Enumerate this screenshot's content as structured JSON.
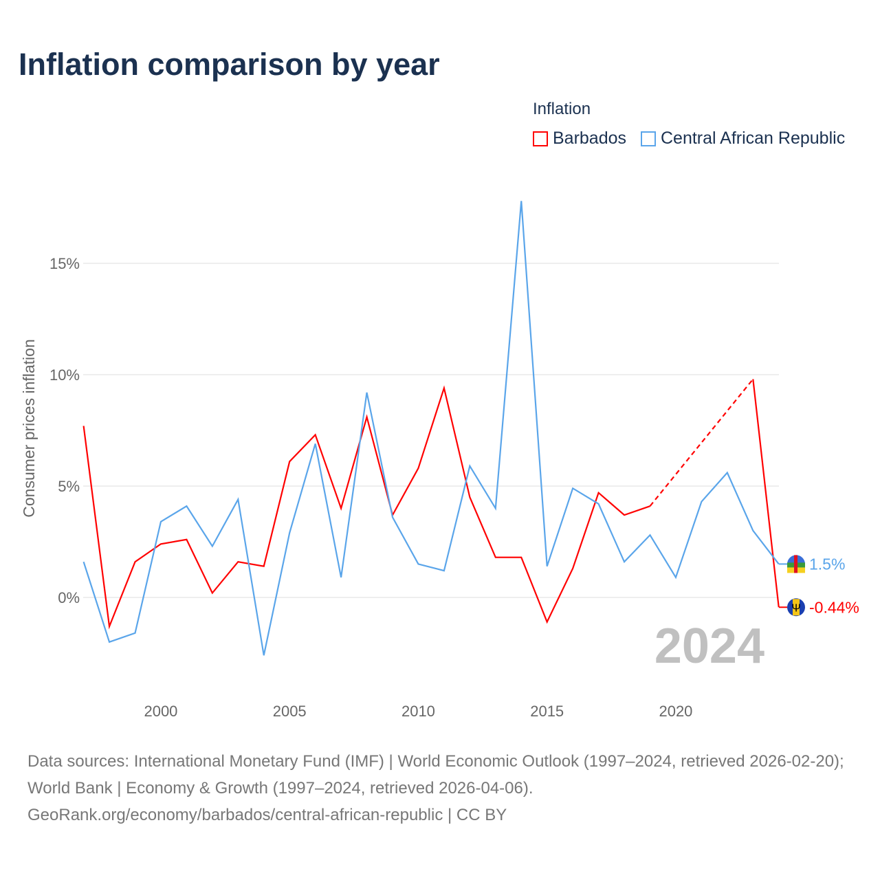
{
  "title": "Inflation comparison by year",
  "legend": {
    "title": "Inflation",
    "items": [
      "Barbados",
      "Central African Republic"
    ]
  },
  "year_label": "2024",
  "source": {
    "line1": "Data sources: International Monetary Fund (IMF) | World Economic Outlook (1997–2024, retrieved 2026-02-20); World Bank | Economy & Growth (1997–2024, retrieved 2026-04-06).",
    "line2": "GeoRank.org/economy/barbados/central-african-republic | CC BY"
  },
  "chart_data": {
    "type": "line",
    "title": "Inflation comparison by year",
    "ylabel": "Consumer prices inflation",
    "xlim": [
      1997,
      2024
    ],
    "ylim": [
      -4,
      20
    ],
    "xticks": [
      2000,
      2005,
      2010,
      2015,
      2020
    ],
    "yticks": [
      0,
      5,
      10,
      15
    ],
    "ytick_labels": [
      "0%",
      "5%",
      "10%",
      "15%"
    ],
    "x": [
      1997,
      1998,
      1999,
      2000,
      2001,
      2002,
      2003,
      2004,
      2005,
      2006,
      2007,
      2008,
      2009,
      2010,
      2011,
      2012,
      2013,
      2014,
      2015,
      2016,
      2017,
      2018,
      2019,
      2020,
      2021,
      2022,
      2023,
      2024
    ],
    "series": [
      {
        "name": "Barbados",
        "color": "#ff0000",
        "end_label": "-0.44%",
        "values": [
          7.7,
          -1.3,
          1.6,
          2.4,
          2.6,
          0.2,
          1.6,
          1.4,
          6.1,
          7.3,
          4.0,
          8.1,
          3.7,
          5.8,
          9.4,
          4.5,
          1.8,
          1.8,
          -1.1,
          1.3,
          4.7,
          3.7,
          4.1,
          null,
          null,
          null,
          9.8,
          -0.44
        ]
      },
      {
        "name": "Central African Republic",
        "color": "#5aa5ea",
        "end_label": "1.5%",
        "values": [
          1.6,
          -2.0,
          -1.6,
          3.4,
          4.1,
          2.3,
          4.4,
          -2.6,
          2.9,
          6.9,
          0.9,
          9.2,
          3.6,
          1.5,
          1.2,
          5.9,
          4.0,
          17.8,
          1.4,
          4.9,
          4.2,
          1.6,
          2.8,
          0.9,
          4.3,
          5.6,
          3.0,
          1.5
        ]
      }
    ]
  }
}
